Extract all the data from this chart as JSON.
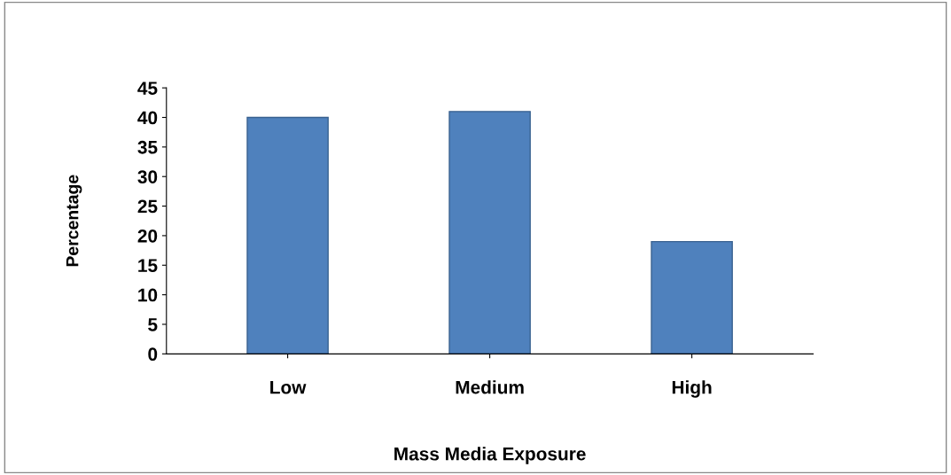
{
  "chart_data": {
    "type": "bar",
    "xlabel": "Mass Media Exposure",
    "ylabel": "Percentage",
    "categories": [
      "Low",
      "Medium",
      "High"
    ],
    "values": [
      40,
      41,
      19
    ],
    "color": "#4f81bd",
    "ylim": [
      0,
      45
    ],
    "yticks": [
      0,
      5,
      10,
      15,
      20,
      25,
      30,
      35,
      40,
      45
    ],
    "grid": false
  }
}
